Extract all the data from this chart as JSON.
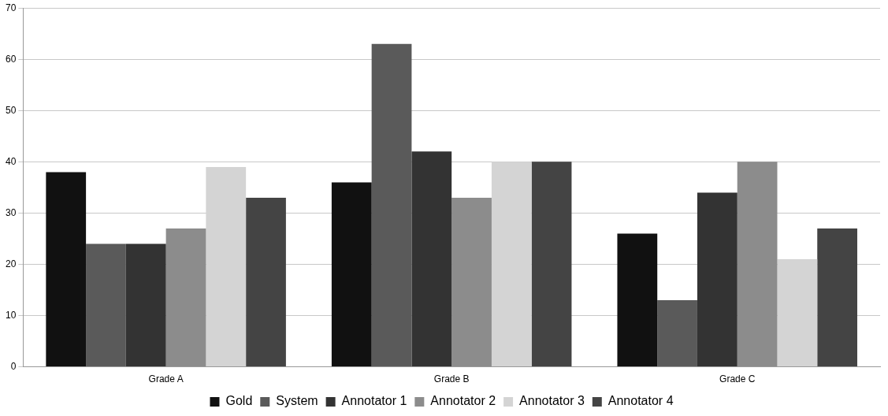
{
  "chart_data": {
    "type": "bar",
    "categories": [
      "Grade A",
      "Grade B",
      "Grade C"
    ],
    "series": [
      {
        "name": "Gold",
        "color": "#111111",
        "values": [
          38,
          36,
          26
        ]
      },
      {
        "name": "System",
        "color": "#5a5a5a",
        "values": [
          24,
          63,
          13
        ]
      },
      {
        "name": "Annotator 1",
        "color": "#333333",
        "values": [
          24,
          42,
          34
        ]
      },
      {
        "name": "Annotator 2",
        "color": "#8c8c8c",
        "values": [
          27,
          33,
          40
        ]
      },
      {
        "name": "Annotator 3",
        "color": "#d4d4d4",
        "values": [
          39,
          40,
          21
        ]
      },
      {
        "name": "Annotator 4",
        "color": "#444444",
        "values": [
          33,
          40,
          27
        ]
      }
    ],
    "ylim": [
      0,
      70
    ],
    "yticks": [
      0,
      10,
      20,
      30,
      40,
      50,
      60,
      70
    ],
    "grid": "y",
    "legend": "bottom"
  }
}
